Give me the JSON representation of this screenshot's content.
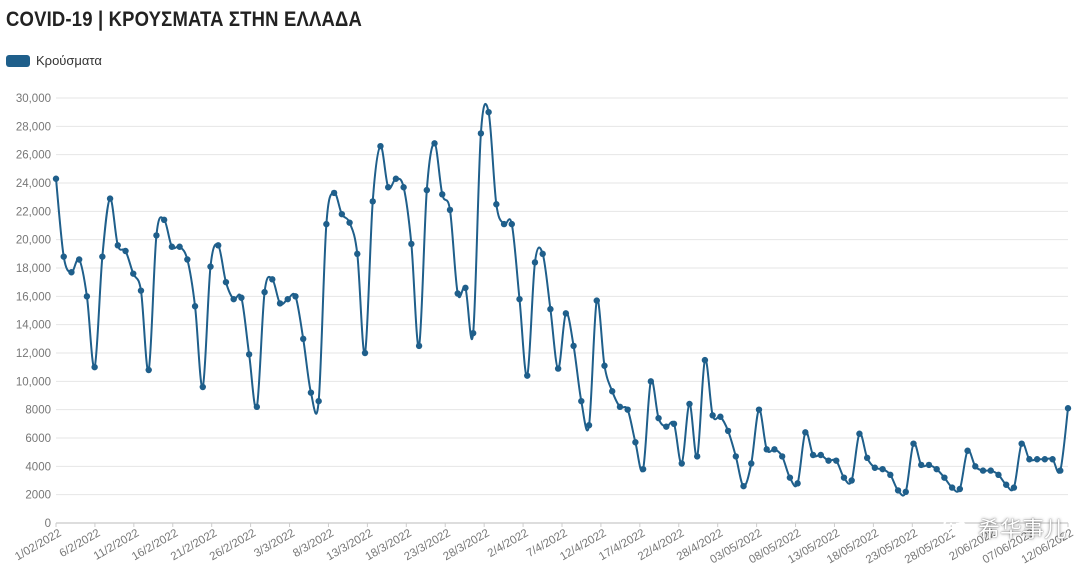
{
  "title": "COVID-19 | ΚΡΟΥΣΜΑΤΑ ΣΤΗΝ ΕΛΛΑΔΑ",
  "legend": {
    "label": "Κρούσματα",
    "color": "#1f5f8b"
  },
  "watermark": {
    "text": "希华事儿",
    "icon": "wechat-icon"
  },
  "chart_data": {
    "type": "line",
    "title": "COVID-19 | ΚΡΟΥΣΜΑΤΑ ΣΤΗΝ ΕΛΛΑΔΑ",
    "xlabel": "",
    "ylabel": "",
    "ylim": [
      0,
      30000
    ],
    "yticks": [
      "0",
      "2000",
      "4000",
      "6000",
      "8000",
      "10,000",
      "12,000",
      "14,000",
      "16,000",
      "18,000",
      "20,000",
      "22,000",
      "24,000",
      "26,000",
      "28,000",
      "30,000"
    ],
    "xticks": [
      "1/02/2022",
      "6/2/2022",
      "11/2/2022",
      "16/2/2022",
      "21/2/2022",
      "26/2/2022",
      "3/3/2022",
      "8/3/2022",
      "13/3/2022",
      "18/3/2022",
      "23/3/2022",
      "28/3/2022",
      "2/4/2022",
      "7/4/2022",
      "12/4/2022",
      "17/4/2022",
      "22/4/2022",
      "28/4/2022",
      "03/05/2022",
      "08/05/2022",
      "13/05/2022",
      "18/05/2022",
      "23/05/2022",
      "28/05/2022",
      "2/06/2022",
      "07/06/2022",
      "12/06/2022"
    ],
    "grid": true,
    "legend_position": "top-left",
    "series": [
      {
        "name": "Κρούσματα",
        "color": "#1f5f8b",
        "values": [
          24300,
          18800,
          17700,
          18600,
          16000,
          11000,
          18800,
          22900,
          19600,
          19200,
          17600,
          16400,
          10800,
          20300,
          21400,
          19500,
          19500,
          18600,
          15300,
          9600,
          18100,
          19600,
          17000,
          15800,
          15900,
          11900,
          8200,
          16300,
          17200,
          15500,
          15800,
          16000,
          13000,
          9200,
          8600,
          21100,
          23300,
          21800,
          21200,
          19000,
          12000,
          22700,
          26600,
          23700,
          24300,
          23700,
          19700,
          12500,
          23500,
          26800,
          23200,
          22100,
          16200,
          16600,
          13400,
          27500,
          29000,
          22500,
          21100,
          21100,
          15800,
          10400,
          18400,
          19000,
          15100,
          10900,
          14800,
          12500,
          8600,
          6900,
          15700,
          11100,
          9300,
          8200,
          8000,
          5700,
          3800,
          10000,
          7400,
          6800,
          7000,
          4200,
          8400,
          4700,
          11500,
          7600,
          7500,
          6500,
          4700,
          2600,
          4200,
          8000,
          5200,
          5200,
          4700,
          3200,
          2800,
          6400,
          4800,
          4800,
          4400,
          4400,
          3200,
          3000,
          6300,
          4600,
          3900,
          3800,
          3400,
          2300,
          2200,
          5600,
          4100,
          4100,
          3800,
          3200,
          2500,
          2400,
          5100,
          4000,
          3700,
          3700,
          3400,
          2700,
          2500,
          5600,
          4500,
          4500,
          4500,
          4500,
          3700,
          8100
        ]
      }
    ]
  }
}
